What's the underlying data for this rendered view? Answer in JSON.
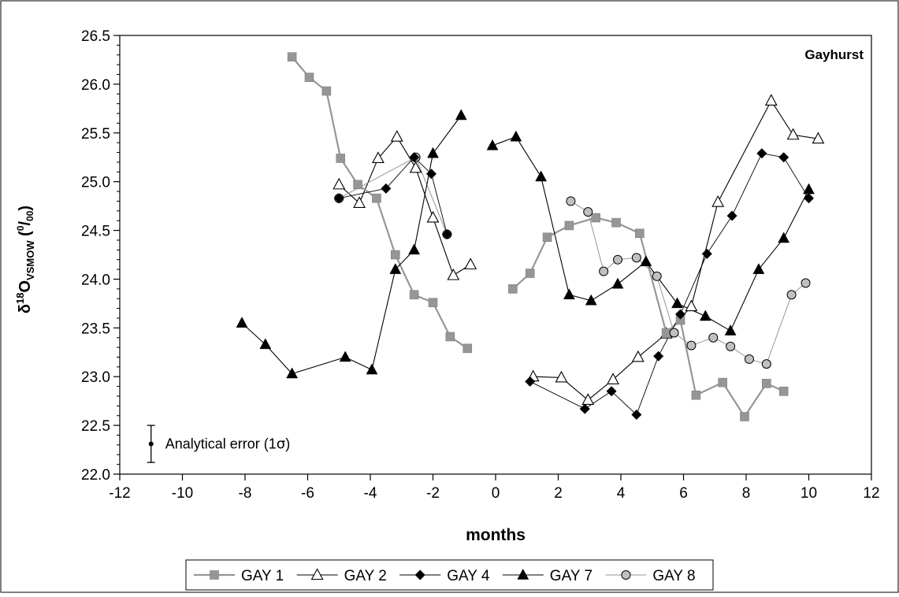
{
  "chart_data": {
    "type": "scatter",
    "title": "Gayhurst",
    "xlabel": "months",
    "ylabel": "δ18OVSMOW (0/00)",
    "ylabel_parts": {
      "delta": "δ",
      "sup": "18",
      "base": "O",
      "sub": "VSMOW",
      "unit_open": " (",
      "unit_sup": "0",
      "unit_rest": "/",
      "unit_sub": "00",
      "unit_close": ")"
    },
    "xlim": [
      -12,
      12
    ],
    "ylim": [
      22.0,
      26.5
    ],
    "x_ticks": [
      -12,
      -10,
      -8,
      -6,
      -4,
      -2,
      0,
      2,
      4,
      6,
      8,
      10,
      12
    ],
    "y_ticks": [
      "22.0",
      "22.5",
      "23.0",
      "23.5",
      "24.0",
      "24.5",
      "25.0",
      "25.5",
      "26.0",
      "26.5"
    ],
    "grid": false,
    "legend_position": "bottom",
    "annotation": {
      "text": "Analytical error (1σ)",
      "label_prefix": "Analytical error (1",
      "label_sigma": "σ",
      "label_suffix": ")",
      "x": -11.0,
      "y": 22.31,
      "error": 0.19
    },
    "series": [
      {
        "name": "GAY 1",
        "marker": "square",
        "fill": "#969696",
        "line_color": "#969696",
        "line_width": 2.2,
        "segments": [
          [
            [
              -6.5,
              26.28
            ],
            [
              -5.95,
              26.07
            ],
            [
              -5.4,
              25.93
            ],
            [
              -4.95,
              25.24
            ],
            [
              -4.4,
              24.97
            ],
            [
              -3.8,
              24.83
            ],
            [
              -3.2,
              24.25
            ],
            [
              -2.6,
              23.84
            ],
            [
              -2.0,
              23.76
            ],
            [
              -1.45,
              23.41
            ],
            [
              -0.9,
              23.29
            ]
          ],
          [
            [
              0.55,
              23.9
            ],
            [
              1.1,
              24.06
            ],
            [
              1.65,
              24.43
            ],
            [
              2.35,
              24.55
            ],
            [
              3.2,
              24.63
            ],
            [
              3.85,
              24.58
            ],
            [
              4.6,
              24.47
            ],
            [
              5.45,
              23.45
            ],
            [
              5.9,
              23.58
            ],
            [
              6.4,
              22.81
            ],
            [
              7.25,
              22.94
            ],
            [
              7.95,
              22.59
            ],
            [
              8.65,
              22.93
            ],
            [
              9.2,
              22.85
            ]
          ]
        ]
      },
      {
        "name": "GAY 2",
        "marker": "triangle-open",
        "fill": "#ffffff",
        "line_color": "#000000",
        "line_width": 1.1,
        "segments": [
          [
            [
              -5.0,
              24.97
            ],
            [
              -4.35,
              24.78
            ],
            [
              -3.75,
              25.24
            ],
            [
              -3.15,
              25.46
            ],
            [
              -2.55,
              25.14
            ],
            [
              -2.0,
              24.63
            ],
            [
              -1.35,
              24.04
            ],
            [
              -0.8,
              24.15
            ]
          ],
          [
            [
              1.2,
              23.0
            ],
            [
              2.1,
              22.99
            ],
            [
              2.95,
              22.76
            ],
            [
              3.75,
              22.97
            ],
            [
              4.55,
              23.2
            ],
            [
              5.45,
              23.44
            ],
            [
              6.25,
              23.72
            ],
            [
              7.1,
              24.79
            ],
            [
              8.8,
              25.83
            ],
            [
              9.5,
              25.48
            ],
            [
              10.3,
              25.44
            ]
          ]
        ]
      },
      {
        "name": "GAY 4",
        "marker": "diamond",
        "fill": "#000000",
        "line_color": "#000000",
        "line_width": 0.9,
        "segments": [
          [
            [
              -5.0,
              24.83
            ],
            [
              -3.5,
              24.93
            ],
            [
              -2.6,
              25.25
            ],
            [
              -2.05,
              25.08
            ],
            [
              -1.55,
              24.46
            ]
          ],
          [
            [
              1.1,
              22.95
            ],
            [
              2.85,
              22.67
            ],
            [
              3.7,
              22.85
            ],
            [
              4.5,
              22.61
            ],
            [
              5.2,
              23.21
            ],
            [
              5.9,
              23.64
            ],
            [
              6.75,
              24.26
            ],
            [
              7.55,
              24.65
            ],
            [
              8.5,
              25.29
            ],
            [
              9.2,
              25.25
            ],
            [
              10.0,
              24.83
            ]
          ]
        ]
      },
      {
        "name": "GAY 7",
        "marker": "triangle",
        "fill": "#000000",
        "line_color": "#000000",
        "line_width": 1.1,
        "segments": [
          [
            [
              -8.1,
              23.55
            ],
            [
              -7.35,
              23.33
            ],
            [
              -6.5,
              23.03
            ],
            [
              -4.8,
              23.2
            ],
            [
              -3.95,
              23.07
            ],
            [
              -3.2,
              24.1
            ],
            [
              -2.6,
              24.3
            ],
            [
              -2.0,
              25.29
            ],
            [
              -1.1,
              25.68
            ]
          ],
          [
            [
              -0.1,
              25.37
            ],
            [
              0.65,
              25.46
            ],
            [
              1.45,
              25.05
            ],
            [
              2.35,
              23.84
            ],
            [
              3.05,
              23.78
            ],
            [
              3.9,
              23.95
            ],
            [
              4.8,
              24.18
            ],
            [
              5.8,
              23.75
            ],
            [
              6.7,
              23.62
            ],
            [
              7.5,
              23.47
            ],
            [
              8.4,
              24.1
            ],
            [
              9.2,
              24.42
            ],
            [
              10.0,
              24.92
            ]
          ]
        ]
      },
      {
        "name": "GAY 8",
        "marker": "circle",
        "fill": "#c0c0c0",
        "line_color": "#969696",
        "line_width": 1.0,
        "segments": [
          [
            [
              -5.0,
              24.83
            ],
            [
              -2.55,
              25.25
            ],
            [
              -1.55,
              24.46
            ]
          ],
          [
            [
              2.4,
              24.8
            ],
            [
              2.95,
              24.69
            ],
            [
              3.45,
              24.08
            ],
            [
              3.9,
              24.2
            ],
            [
              4.5,
              24.22
            ],
            [
              5.15,
              24.03
            ],
            [
              5.7,
              23.45
            ],
            [
              6.25,
              23.32
            ],
            [
              6.95,
              23.4
            ],
            [
              7.5,
              23.31
            ],
            [
              8.1,
              23.18
            ],
            [
              8.65,
              23.13
            ],
            [
              9.45,
              23.84
            ],
            [
              9.9,
              23.96
            ]
          ]
        ]
      }
    ]
  }
}
